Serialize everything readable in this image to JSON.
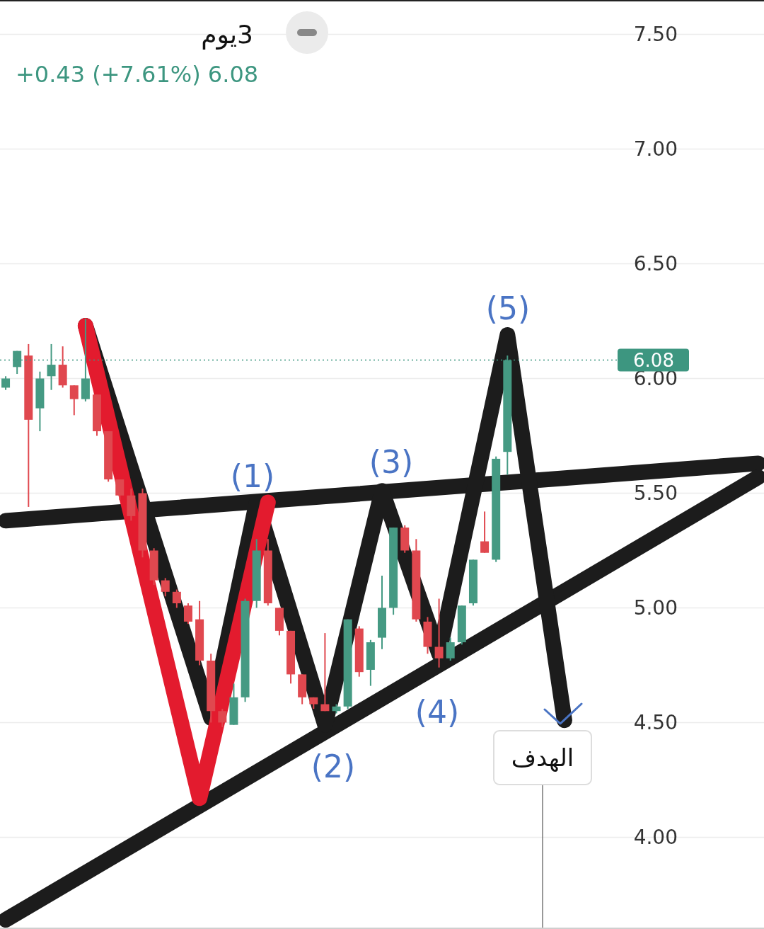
{
  "chart_data": {
    "type": "candlestick",
    "title": "3يوم",
    "subtitle": "+0.43 (+7.61%)  6.08",
    "categories": [
      null,
      null,
      null,
      null,
      null,
      null,
      null,
      null,
      null,
      null,
      null,
      null,
      null,
      null,
      null,
      null,
      null,
      null,
      null,
      null,
      null,
      null,
      null,
      null,
      null,
      null,
      null,
      null,
      null,
      null,
      null,
      null,
      null,
      null,
      null,
      null,
      null,
      null,
      null,
      null,
      null,
      null,
      null,
      null,
      null,
      null,
      null,
      null,
      null,
      null,
      null,
      null,
      null,
      null,
      null,
      null,
      null,
      null,
      null,
      null,
      null,
      null,
      null,
      null,
      null,
      null,
      null
    ],
    "ohlc": [
      [
        5.96,
        6.01,
        5.95,
        6.0
      ],
      [
        6.05,
        6.12,
        6.02,
        6.12
      ],
      [
        6.1,
        6.15,
        5.44,
        5.82
      ],
      [
        5.87,
        6.03,
        5.77,
        6.0
      ],
      [
        6.01,
        6.15,
        5.95,
        6.06
      ],
      [
        6.06,
        6.14,
        5.96,
        5.97
      ],
      [
        5.97,
        5.97,
        5.84,
        5.91
      ],
      [
        5.91,
        6.26,
        5.9,
        6.0
      ],
      [
        5.93,
        5.93,
        5.75,
        5.77
      ],
      [
        5.77,
        5.77,
        5.55,
        5.56
      ],
      [
        5.56,
        5.56,
        5.47,
        5.49
      ],
      [
        5.49,
        5.52,
        5.38,
        5.4
      ],
      [
        5.5,
        5.52,
        5.22,
        5.25
      ],
      [
        5.25,
        5.26,
        5.1,
        5.12
      ],
      [
        5.12,
        5.13,
        5.05,
        5.07
      ],
      [
        5.07,
        5.08,
        5.0,
        5.02
      ],
      [
        5.01,
        5.02,
        4.93,
        4.94
      ],
      [
        4.95,
        5.03,
        4.75,
        4.77
      ],
      [
        4.77,
        4.8,
        4.5,
        4.55
      ],
      [
        4.55,
        4.56,
        4.48,
        4.5
      ],
      [
        4.49,
        4.67,
        4.49,
        4.61
      ],
      [
        4.61,
        5.04,
        4.59,
        5.03
      ],
      [
        5.03,
        5.3,
        5.0,
        5.25
      ],
      [
        5.25,
        5.3,
        5.01,
        5.02
      ],
      [
        5.0,
        5.0,
        4.88,
        4.9
      ],
      [
        4.9,
        4.9,
        4.67,
        4.71
      ],
      [
        4.71,
        4.71,
        4.58,
        4.61
      ],
      [
        4.61,
        4.61,
        4.56,
        4.58
      ],
      [
        4.58,
        4.89,
        4.55,
        4.55
      ],
      [
        4.55,
        4.58,
        4.54,
        4.57
      ],
      [
        4.57,
        4.95,
        4.56,
        4.95
      ],
      [
        4.91,
        4.92,
        4.7,
        4.72
      ],
      [
        4.73,
        4.86,
        4.66,
        4.85
      ],
      [
        4.87,
        5.14,
        4.82,
        5.0
      ],
      [
        5.0,
        5.35,
        4.97,
        5.35
      ],
      [
        5.35,
        5.36,
        5.24,
        5.25
      ],
      [
        5.25,
        5.3,
        4.94,
        4.95
      ],
      [
        4.94,
        4.96,
        4.8,
        4.83
      ],
      [
        4.83,
        5.04,
        4.74,
        4.78
      ],
      [
        4.78,
        4.87,
        4.77,
        4.85
      ],
      [
        4.85,
        5.01,
        4.84,
        5.01
      ],
      [
        5.02,
        5.21,
        5.01,
        5.21
      ],
      [
        5.29,
        5.42,
        5.24,
        5.24
      ],
      [
        5.21,
        5.66,
        5.2,
        5.65
      ],
      [
        5.68,
        6.1,
        5.58,
        6.08
      ],
      null,
      null,
      null,
      null,
      null,
      null,
      null,
      null,
      null,
      null,
      null,
      null,
      null,
      null,
      null,
      null,
      null,
      null,
      null,
      null,
      null,
      null
    ],
    "colors": [
      "#459a83",
      "#459a83",
      "#e0484f",
      "#459a83",
      "#459a83",
      "#e0484f",
      "#e0484f",
      "#459a83",
      "#e0484f",
      "#e0484f",
      "#e0484f",
      "#e0484f",
      "#e0484f",
      "#e0484f",
      "#e0484f",
      "#e0484f",
      "#e0484f",
      "#e0484f",
      "#e0484f",
      "#e0484f",
      "#459a83",
      "#459a83",
      "#459a83",
      "#e0484f",
      "#e0484f",
      "#e0484f",
      "#e0484f",
      "#e0484f",
      "#e0484f",
      "#459a83",
      "#459a83",
      "#e0484f",
      "#459a83",
      "#459a83",
      "#459a83",
      "#e0484f",
      "#e0484f",
      "#e0484f",
      "#e0484f",
      "#459a83",
      "#459a83",
      "#459a83",
      "#e0484f",
      "#459a83",
      "#459a83",
      null,
      null,
      null,
      null,
      null,
      null,
      null,
      null,
      null,
      null,
      null,
      null,
      null,
      null,
      null,
      null,
      null,
      null,
      null,
      null,
      null,
      null
    ],
    "series": [
      {
        "type": "line",
        "color": "#1c1c1c",
        "values": [
          5.38,
          null,
          null,
          null,
          null,
          null,
          null,
          null,
          null,
          null,
          null,
          null,
          null,
          null,
          null,
          null,
          null,
          null,
          null,
          null,
          null,
          null,
          null,
          null,
          null,
          null,
          null,
          null,
          null,
          null,
          null,
          null,
          null,
          null,
          null,
          null,
          null,
          null,
          null,
          null,
          null,
          null,
          null,
          null,
          null,
          null,
          null,
          null,
          null,
          null,
          null,
          null,
          null,
          null,
          null,
          null,
          null,
          null,
          null,
          null,
          null,
          null,
          null,
          null,
          null,
          null,
          5.63
        ]
      },
      {
        "type": "line",
        "color": "#1c1c1c",
        "values": [
          3.64,
          null,
          null,
          null,
          null,
          null,
          null,
          null,
          null,
          null,
          null,
          null,
          null,
          null,
          null,
          null,
          null,
          null,
          null,
          null,
          null,
          null,
          null,
          null,
          null,
          null,
          null,
          null,
          null,
          null,
          null,
          null,
          null,
          null,
          null,
          null,
          null,
          null,
          null,
          null,
          null,
          null,
          null,
          null,
          null,
          null,
          null,
          null,
          null,
          null,
          null,
          null,
          null,
          null,
          null,
          null,
          null,
          null,
          null,
          null,
          null,
          null,
          null,
          null,
          null,
          null,
          5.57
        ]
      },
      {
        "type": "line",
        "color": "#1c1c1c",
        "values": [
          null,
          null,
          null,
          null,
          null,
          null,
          null,
          6.23,
          null,
          null,
          null,
          null,
          null,
          null,
          null,
          null,
          null,
          null,
          4.52,
          null,
          null,
          null,
          5.46,
          null,
          null,
          null,
          null,
          null,
          4.49,
          null,
          null,
          null,
          null,
          5.51,
          null,
          null,
          null,
          null,
          4.8,
          null,
          null,
          null,
          null,
          null,
          6.19,
          null,
          null,
          null,
          null,
          4.51,
          null,
          null,
          null,
          null,
          null,
          null,
          null,
          null,
          null,
          null,
          null,
          null,
          null,
          null,
          null,
          null,
          null
        ]
      },
      {
        "type": "line",
        "color": "#e31b2e",
        "values": [
          null,
          null,
          null,
          null,
          null,
          null,
          null,
          6.23,
          null,
          null,
          null,
          null,
          null,
          null,
          null,
          null,
          null,
          4.17,
          null,
          null,
          null,
          null,
          null,
          5.46,
          null,
          null,
          null,
          null,
          null,
          null,
          null,
          null,
          null,
          null,
          null,
          null,
          null,
          null,
          null,
          null,
          null,
          null,
          null,
          null,
          null,
          null,
          null,
          null,
          null,
          null,
          null,
          null,
          null,
          null,
          null,
          null,
          null,
          null,
          null,
          null,
          null,
          null,
          null,
          null,
          null,
          null,
          null
        ]
      }
    ],
    "ylim": [
      3.6,
      7.65
    ],
    "yticks": [
      {
        "value": 4,
        "label": "4.00"
      },
      {
        "value": 4.5,
        "label": "4.50"
      },
      {
        "value": 5,
        "label": "5.00"
      },
      {
        "value": 5.5,
        "label": "5.50"
      },
      {
        "value": 6,
        "label": "6.00"
      },
      {
        "value": 6.5,
        "label": "6.50"
      },
      {
        "value": 7,
        "label": "7.00"
      },
      {
        "value": 7.5,
        "label": "7.50"
      }
    ],
    "tick_labels": "y",
    "grid": "y",
    "ref_lines": [
      {
        "axis": "y",
        "value": 6.08,
        "label": "6.08",
        "color": "#3d9680",
        "line_style": "dotted"
      }
    ],
    "annotations": [
      "(1)",
      "(2)",
      "(3)",
      "(4)",
      "(5)",
      "الهدف"
    ]
  }
}
